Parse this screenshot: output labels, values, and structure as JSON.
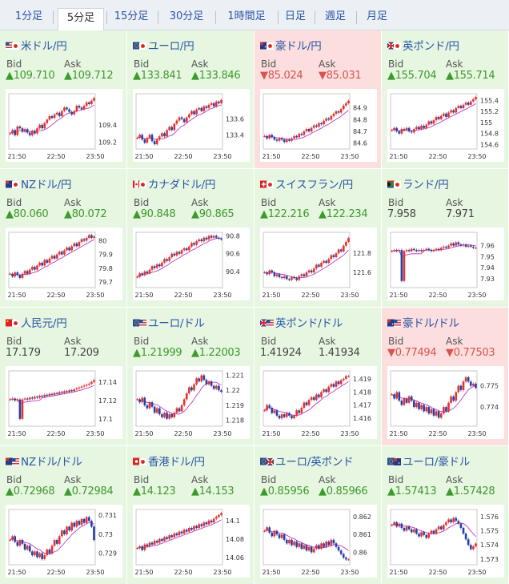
{
  "tabs": [
    {
      "label": "1分足",
      "active": false
    },
    {
      "label": "5分足",
      "active": true
    },
    {
      "label": "15分足",
      "active": false
    },
    {
      "label": "30分足",
      "active": false
    },
    {
      "label": "1時間足",
      "active": false
    },
    {
      "label": "日足",
      "active": false
    },
    {
      "label": "週足",
      "active": false
    },
    {
      "label": "月足",
      "active": false
    }
  ],
  "colors": {
    "up": "#e6f6e0",
    "down": "#fbdedd",
    "up_text": "#3d9a2c",
    "down_text": "#d9534f",
    "candle_up": "#e5322d",
    "candle_down": "#2540a8",
    "ma": "#c03cc0",
    "ma2": "#2a9ab5"
  },
  "time_labels": [
    "21:50",
    "22:50",
    "23:50"
  ],
  "bid_label": "Bid",
  "ask_label": "Ask",
  "pairs": [
    {
      "name": "米ドル/円",
      "flag": "us-jp",
      "state": "up",
      "bid": "▲109.710",
      "ask": "▲109.712",
      "yticks": [
        "109.4",
        "109.2"
      ],
      "ylim": [
        109.12,
        109.76
      ],
      "series": [
        109.3,
        109.34,
        109.28,
        109.38,
        109.36,
        109.32,
        109.35,
        109.31,
        109.28,
        109.33,
        109.3,
        109.36,
        109.4,
        109.36,
        109.42,
        109.46,
        109.5,
        109.48,
        109.52,
        109.54,
        109.5,
        109.56,
        109.6,
        109.58,
        109.55,
        109.52,
        109.56,
        109.62,
        109.6,
        109.58,
        109.62,
        109.66,
        109.64,
        109.68,
        109.71
      ]
    },
    {
      "name": "ユーロ/円",
      "flag": "eu-jp",
      "state": "up",
      "bid": "▲133.841",
      "ask": "▲133.846",
      "yticks": [
        "133.6",
        "133.4"
      ],
      "ylim": [
        133.22,
        133.92
      ],
      "series": [
        133.36,
        133.4,
        133.34,
        133.3,
        133.36,
        133.4,
        133.32,
        133.28,
        133.34,
        133.38,
        133.42,
        133.38,
        133.46,
        133.5,
        133.46,
        133.54,
        133.58,
        133.62,
        133.6,
        133.56,
        133.62,
        133.66,
        133.7,
        133.66,
        133.72,
        133.74,
        133.7,
        133.76,
        133.74,
        133.78,
        133.8,
        133.76,
        133.82,
        133.8,
        133.84
      ]
    },
    {
      "name": "豪ドル/円",
      "flag": "au-jp",
      "state": "down",
      "bid": "▼85.024",
      "ask": "▼85.031",
      "yticks": [
        "84.9",
        "84.8",
        "84.7",
        "84.6"
      ],
      "ylim": [
        84.55,
        85.02
      ],
      "series": [
        84.66,
        84.64,
        84.67,
        84.65,
        84.63,
        84.62,
        84.64,
        84.63,
        84.61,
        84.63,
        84.62,
        84.64,
        84.66,
        84.65,
        84.68,
        84.67,
        84.7,
        84.72,
        84.7,
        84.73,
        84.75,
        84.74,
        84.77,
        84.76,
        84.79,
        84.81,
        84.8,
        84.83,
        84.85,
        84.87,
        84.86,
        84.89,
        84.92,
        84.94,
        84.96
      ]
    },
    {
      "name": "英ポンド/円",
      "flag": "gb-jp",
      "state": "up",
      "bid": "▲155.704",
      "ask": "▲155.714",
      "yticks": [
        "155.4",
        "155.2",
        "155",
        "154.8",
        "154.6"
      ],
      "ylim": [
        154.52,
        155.52
      ],
      "series": [
        154.86,
        154.9,
        154.84,
        154.8,
        154.88,
        154.86,
        154.9,
        154.84,
        154.82,
        154.88,
        154.92,
        154.88,
        154.94,
        154.9,
        154.96,
        155.02,
        154.98,
        155.04,
        155.1,
        155.06,
        155.12,
        155.16,
        155.1,
        155.18,
        155.22,
        155.18,
        155.26,
        155.3,
        155.26,
        155.32,
        155.36,
        155.32,
        155.38,
        155.42,
        155.46
      ]
    },
    {
      "name": "NZドル/円",
      "flag": "nz-jp",
      "state": "up",
      "bid": "▲80.060",
      "ask": "▲80.072",
      "yticks": [
        "80",
        "79.9",
        "79.8",
        "79.7"
      ],
      "ylim": [
        79.66,
        80.06
      ],
      "series": [
        79.76,
        79.74,
        79.77,
        79.75,
        79.73,
        79.76,
        79.78,
        79.76,
        79.79,
        79.81,
        79.79,
        79.82,
        79.84,
        79.82,
        79.86,
        79.84,
        79.87,
        79.89,
        79.87,
        79.9,
        79.92,
        79.9,
        79.93,
        79.95,
        79.93,
        79.96,
        79.98,
        79.96,
        79.99,
        80.01,
        80.0,
        80.02,
        80.04,
        80.02,
        80.03
      ]
    },
    {
      "name": "カナダドル/円",
      "flag": "ca-jp",
      "state": "up",
      "bid": "▲90.848",
      "ask": "▲90.865",
      "yticks": [
        "90.8",
        "90.6",
        "90.4"
      ],
      "ylim": [
        90.22,
        90.84
      ],
      "series": [
        90.34,
        90.38,
        90.36,
        90.4,
        90.38,
        90.42,
        90.46,
        90.44,
        90.48,
        90.46,
        90.5,
        90.54,
        90.52,
        90.56,
        90.6,
        90.58,
        90.62,
        90.6,
        90.64,
        90.66,
        90.64,
        90.68,
        90.72,
        90.7,
        90.74,
        90.76,
        90.74,
        90.78,
        90.76,
        90.8,
        90.78,
        90.8,
        90.78,
        90.77,
        90.76
      ]
    },
    {
      "name": "スイスフラン/円",
      "flag": "ch-jp",
      "state": "up",
      "bid": "▲122.216",
      "ask": "▲122.234",
      "yticks": [
        "121.8",
        "121.6"
      ],
      "ylim": [
        121.44,
        122.02
      ],
      "series": [
        121.6,
        121.58,
        121.62,
        121.6,
        121.56,
        121.58,
        121.55,
        121.54,
        121.56,
        121.53,
        121.52,
        121.55,
        121.54,
        121.52,
        121.56,
        121.58,
        121.56,
        121.6,
        121.62,
        121.6,
        121.64,
        121.68,
        121.66,
        121.7,
        121.72,
        121.7,
        121.74,
        121.78,
        121.76,
        121.8,
        121.84,
        121.82,
        121.88,
        121.92,
        121.96
      ]
    },
    {
      "name": "ランド/円",
      "flag": "za-jp",
      "state": "neutral",
      "bid": "7.958",
      "ask": "7.971",
      "yticks": [
        "7.96",
        "7.95",
        "7.94",
        "7.93"
      ],
      "ylim": [
        7.922,
        7.972
      ],
      "series": [
        7.955,
        7.956,
        7.955,
        7.956,
        7.928,
        7.955,
        7.956,
        7.955,
        7.957,
        7.956,
        7.955,
        7.956,
        7.955,
        7.956,
        7.957,
        7.956,
        7.955,
        7.956,
        7.957,
        7.956,
        7.958,
        7.959,
        7.958,
        7.96,
        7.962,
        7.96,
        7.963,
        7.961,
        7.96,
        7.961,
        7.959,
        7.96,
        7.959,
        7.958,
        7.958
      ]
    },
    {
      "name": "人民元/円",
      "flag": "cn-jp",
      "state": "up",
      "bid": "17.179",
      "ask": "17.209",
      "yticks": [
        "17.14",
        "17.12",
        "17.1"
      ],
      "ylim": [
        17.092,
        17.152
      ],
      "series": [
        17.121,
        17.122,
        17.12,
        17.121,
        17.1,
        17.121,
        17.122,
        17.121,
        17.123,
        17.122,
        17.124,
        17.123,
        17.125,
        17.124,
        17.126,
        17.125,
        17.127,
        17.126,
        17.128,
        17.127,
        17.129,
        17.128,
        17.13,
        17.129,
        17.131,
        17.13,
        17.132,
        17.133,
        17.134,
        17.135,
        17.136,
        17.137,
        17.138,
        17.14,
        17.142
      ]
    },
    {
      "name": "ユーロ/ドル",
      "flag": "eu-us",
      "state": "up",
      "bid": "▲1.21999",
      "ask": "▲1.22003",
      "yticks": [
        "1.221",
        "1.22",
        "1.219",
        "1.218"
      ],
      "ylim": [
        1.2176,
        1.2213
      ],
      "series": [
        1.2194,
        1.2192,
        1.2195,
        1.219,
        1.2188,
        1.2192,
        1.2189,
        1.2185,
        1.2188,
        1.2184,
        1.2182,
        1.2185,
        1.2181,
        1.2184,
        1.2182,
        1.2185,
        1.2188,
        1.2186,
        1.219,
        1.2194,
        1.2198,
        1.2202,
        1.22,
        1.2204,
        1.2208,
        1.2206,
        1.221,
        1.2207,
        1.2204,
        1.2206,
        1.2203,
        1.2201,
        1.2203,
        1.22,
        1.2199
      ]
    },
    {
      "name": "英ポンド/ドル",
      "flag": "gb-us",
      "state": "neutral",
      "bid": "1.41924",
      "ask": "1.41934",
      "yticks": [
        "1.419",
        "1.418",
        "1.417",
        "1.416"
      ],
      "ylim": [
        1.4154,
        1.4196
      ],
      "series": [
        1.4166,
        1.417,
        1.4168,
        1.4164,
        1.4166,
        1.4162,
        1.416,
        1.4163,
        1.4161,
        1.4164,
        1.4162,
        1.416,
        1.4162,
        1.4166,
        1.4164,
        1.4168,
        1.4172,
        1.417,
        1.4174,
        1.4176,
        1.4174,
        1.4178,
        1.4176,
        1.418,
        1.4182,
        1.418,
        1.4184,
        1.4186,
        1.4184,
        1.4188,
        1.4186,
        1.4189,
        1.419,
        1.4192,
        1.4192
      ]
    },
    {
      "name": "豪ドル/ドル",
      "flag": "au-us",
      "state": "down",
      "bid": "▼0.77494",
      "ask": "▼0.77503",
      "yticks": [
        "0.775",
        "0.774"
      ],
      "ylim": [
        0.7731,
        0.7757
      ],
      "series": [
        0.7746,
        0.7744,
        0.7747,
        0.7743,
        0.7741,
        0.7744,
        0.7742,
        0.7745,
        0.7743,
        0.774,
        0.7742,
        0.7739,
        0.7741,
        0.7738,
        0.774,
        0.7737,
        0.7739,
        0.7736,
        0.7738,
        0.7735,
        0.7737,
        0.774,
        0.7738,
        0.7742,
        0.7745,
        0.7743,
        0.7747,
        0.775,
        0.7748,
        0.7752,
        0.7754,
        0.7752,
        0.775,
        0.7751,
        0.7749
      ]
    },
    {
      "name": "NZドル/ドル",
      "flag": "nz-us",
      "state": "up",
      "bid": "▲0.72968",
      "ask": "▲0.72984",
      "yticks": [
        "0.731",
        "0.73",
        "0.729"
      ],
      "ylim": [
        0.7284,
        0.7313
      ],
      "series": [
        0.7297,
        0.7299,
        0.7296,
        0.7294,
        0.7297,
        0.7295,
        0.7292,
        0.7294,
        0.7291,
        0.7289,
        0.7291,
        0.7288,
        0.729,
        0.7287,
        0.7289,
        0.7292,
        0.729,
        0.7294,
        0.7297,
        0.7295,
        0.7299,
        0.7302,
        0.73,
        0.7304,
        0.7302,
        0.7306,
        0.7304,
        0.7307,
        0.7305,
        0.7308,
        0.7306,
        0.7309,
        0.7307,
        0.7304,
        0.7297
      ]
    },
    {
      "name": "香港ドル/円",
      "flag": "hk-jp",
      "state": "up",
      "bid": "▲14.123",
      "ask": "▲14.153",
      "yticks": [
        "14.1",
        "14.08",
        "14.06"
      ],
      "ylim": [
        14.052,
        14.112
      ],
      "series": [
        14.07,
        14.072,
        14.068,
        14.074,
        14.072,
        14.076,
        14.074,
        14.078,
        14.076,
        14.08,
        14.078,
        14.082,
        14.08,
        14.084,
        14.082,
        14.086,
        14.084,
        14.088,
        14.086,
        14.09,
        14.088,
        14.092,
        14.09,
        14.094,
        14.092,
        14.096,
        14.094,
        14.098,
        14.096,
        14.1,
        14.098,
        14.102,
        14.104,
        14.106,
        14.108
      ]
    },
    {
      "name": "ユーロ/英ポンド",
      "flag": "eu-gb",
      "state": "up",
      "bid": "▲0.85956",
      "ask": "▲0.85966",
      "yticks": [
        "0.862",
        "0.861",
        "0.86"
      ],
      "ylim": [
        0.8593,
        0.8624
      ],
      "series": [
        0.8612,
        0.8614,
        0.8611,
        0.8609,
        0.8612,
        0.861,
        0.8608,
        0.861,
        0.8607,
        0.8605,
        0.8607,
        0.8604,
        0.8606,
        0.8603,
        0.8605,
        0.8602,
        0.8604,
        0.8601,
        0.8603,
        0.86,
        0.8602,
        0.8604,
        0.8602,
        0.8605,
        0.8603,
        0.8606,
        0.8604,
        0.8607,
        0.8605,
        0.8603,
        0.8601,
        0.8599,
        0.8597,
        0.8596,
        0.8596
      ]
    },
    {
      "name": "ユーロ/豪ドル",
      "flag": "eu-au",
      "state": "up",
      "bid": "▲1.57413",
      "ask": "▲1.57428",
      "yticks": [
        "1.576",
        "1.575",
        "1.574",
        "1.573"
      ],
      "ylim": [
        1.5726,
        1.5765
      ],
      "series": [
        1.5754,
        1.5756,
        1.5753,
        1.5755,
        1.5752,
        1.575,
        1.5753,
        1.5751,
        1.5749,
        1.5751,
        1.5748,
        1.5746,
        1.5749,
        1.5747,
        1.5745,
        1.5748,
        1.575,
        1.5748,
        1.5751,
        1.5753,
        1.5751,
        1.5754,
        1.5756,
        1.5758,
        1.5756,
        1.5759,
        1.5757,
        1.5755,
        1.5752,
        1.5748,
        1.5744,
        1.574,
        1.5737,
        1.5739,
        1.5741
      ]
    }
  ]
}
